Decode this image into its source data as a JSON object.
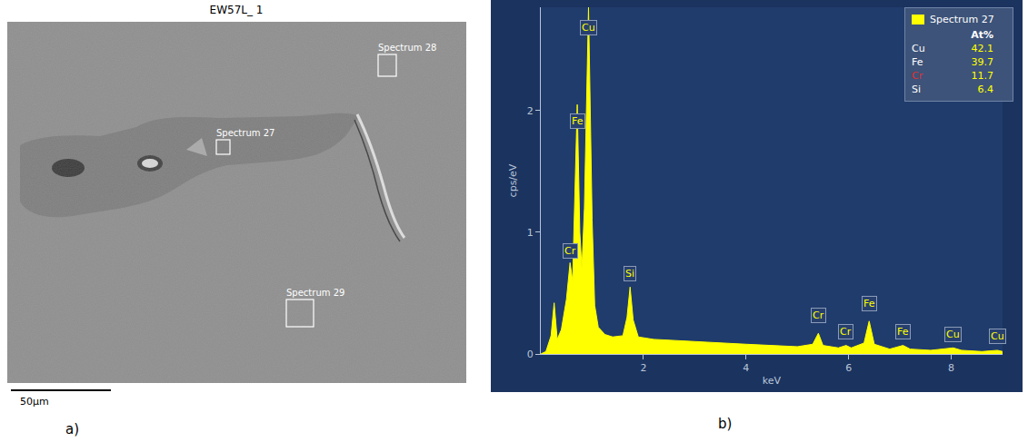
{
  "micrograph": {
    "title": "EW57L_ 1",
    "scale_bar": "50µm",
    "panel_label": "a)",
    "boxes": [
      {
        "label": "Spectrum 28"
      },
      {
        "label": "Spectrum 27"
      },
      {
        "label": "Spectrum 29"
      }
    ]
  },
  "chart_data": {
    "type": "area",
    "panel_label": "b)",
    "x_label": "keV",
    "y_label": "cps/eV",
    "series": [
      {
        "name": "Spectrum 27",
        "color": "#ffff00",
        "x": [
          0,
          0.1,
          0.2,
          0.26,
          0.32,
          0.4,
          0.5,
          0.57,
          0.62,
          0.66,
          0.71,
          0.76,
          0.8,
          0.85,
          0.93,
          1.0,
          1.05,
          1.12,
          1.25,
          1.4,
          1.6,
          1.68,
          1.74,
          1.8,
          1.9,
          2.2,
          2.6,
          3.0,
          3.5,
          4.0,
          4.5,
          5.0,
          5.3,
          5.41,
          5.5,
          5.8,
          5.95,
          6.05,
          6.3,
          6.4,
          6.5,
          6.8,
          7.06,
          7.2,
          7.6,
          8.04,
          8.2,
          8.6,
          8.9,
          9.0
        ],
        "values": [
          0,
          0.02,
          0.15,
          0.42,
          0.12,
          0.2,
          0.45,
          0.75,
          0.6,
          1.2,
          2.05,
          1.0,
          0.7,
          1.2,
          2.85,
          1.1,
          0.4,
          0.22,
          0.16,
          0.14,
          0.15,
          0.3,
          0.55,
          0.28,
          0.14,
          0.12,
          0.11,
          0.1,
          0.09,
          0.08,
          0.07,
          0.06,
          0.08,
          0.17,
          0.07,
          0.05,
          0.07,
          0.05,
          0.09,
          0.27,
          0.08,
          0.04,
          0.07,
          0.04,
          0.03,
          0.05,
          0.03,
          0.02,
          0.03,
          0.02
        ]
      }
    ],
    "xlim": [
      0,
      9
    ],
    "xticks": [
      2,
      4,
      6,
      8
    ],
    "ylim": [
      0,
      2.85
    ],
    "yticks": [
      0,
      1,
      2
    ],
    "grid": false,
    "peak_labels": [
      {
        "text": "Cu",
        "x": 0.93,
        "y": 2.62
      },
      {
        "text": "Fe",
        "x": 0.72,
        "y": 1.85
      },
      {
        "text": "Cr",
        "x": 0.57,
        "y": 0.78
      },
      {
        "text": "Si",
        "x": 1.74,
        "y": 0.6
      },
      {
        "text": "Cr",
        "x": 5.41,
        "y": 0.25
      },
      {
        "text": "Cr",
        "x": 5.95,
        "y": 0.12
      },
      {
        "text": "Fe",
        "x": 6.4,
        "y": 0.35
      },
      {
        "text": "Fe",
        "x": 7.06,
        "y": 0.12
      },
      {
        "text": "Cu",
        "x": 8.04,
        "y": 0.1
      },
      {
        "text": "Cu",
        "x": 8.9,
        "y": 0.08
      }
    ],
    "legend_table": {
      "title": "Spectrum 27",
      "header": "At%",
      "rows": [
        {
          "element": "Cu",
          "value": 42.1,
          "color": "#ffffff"
        },
        {
          "element": "Fe",
          "value": 39.7,
          "color": "#ffffff"
        },
        {
          "element": "Cr",
          "value": 11.7,
          "color": "#e03030"
        },
        {
          "element": "Si",
          "value": 6.4,
          "color": "#ffffff"
        }
      ]
    }
  }
}
